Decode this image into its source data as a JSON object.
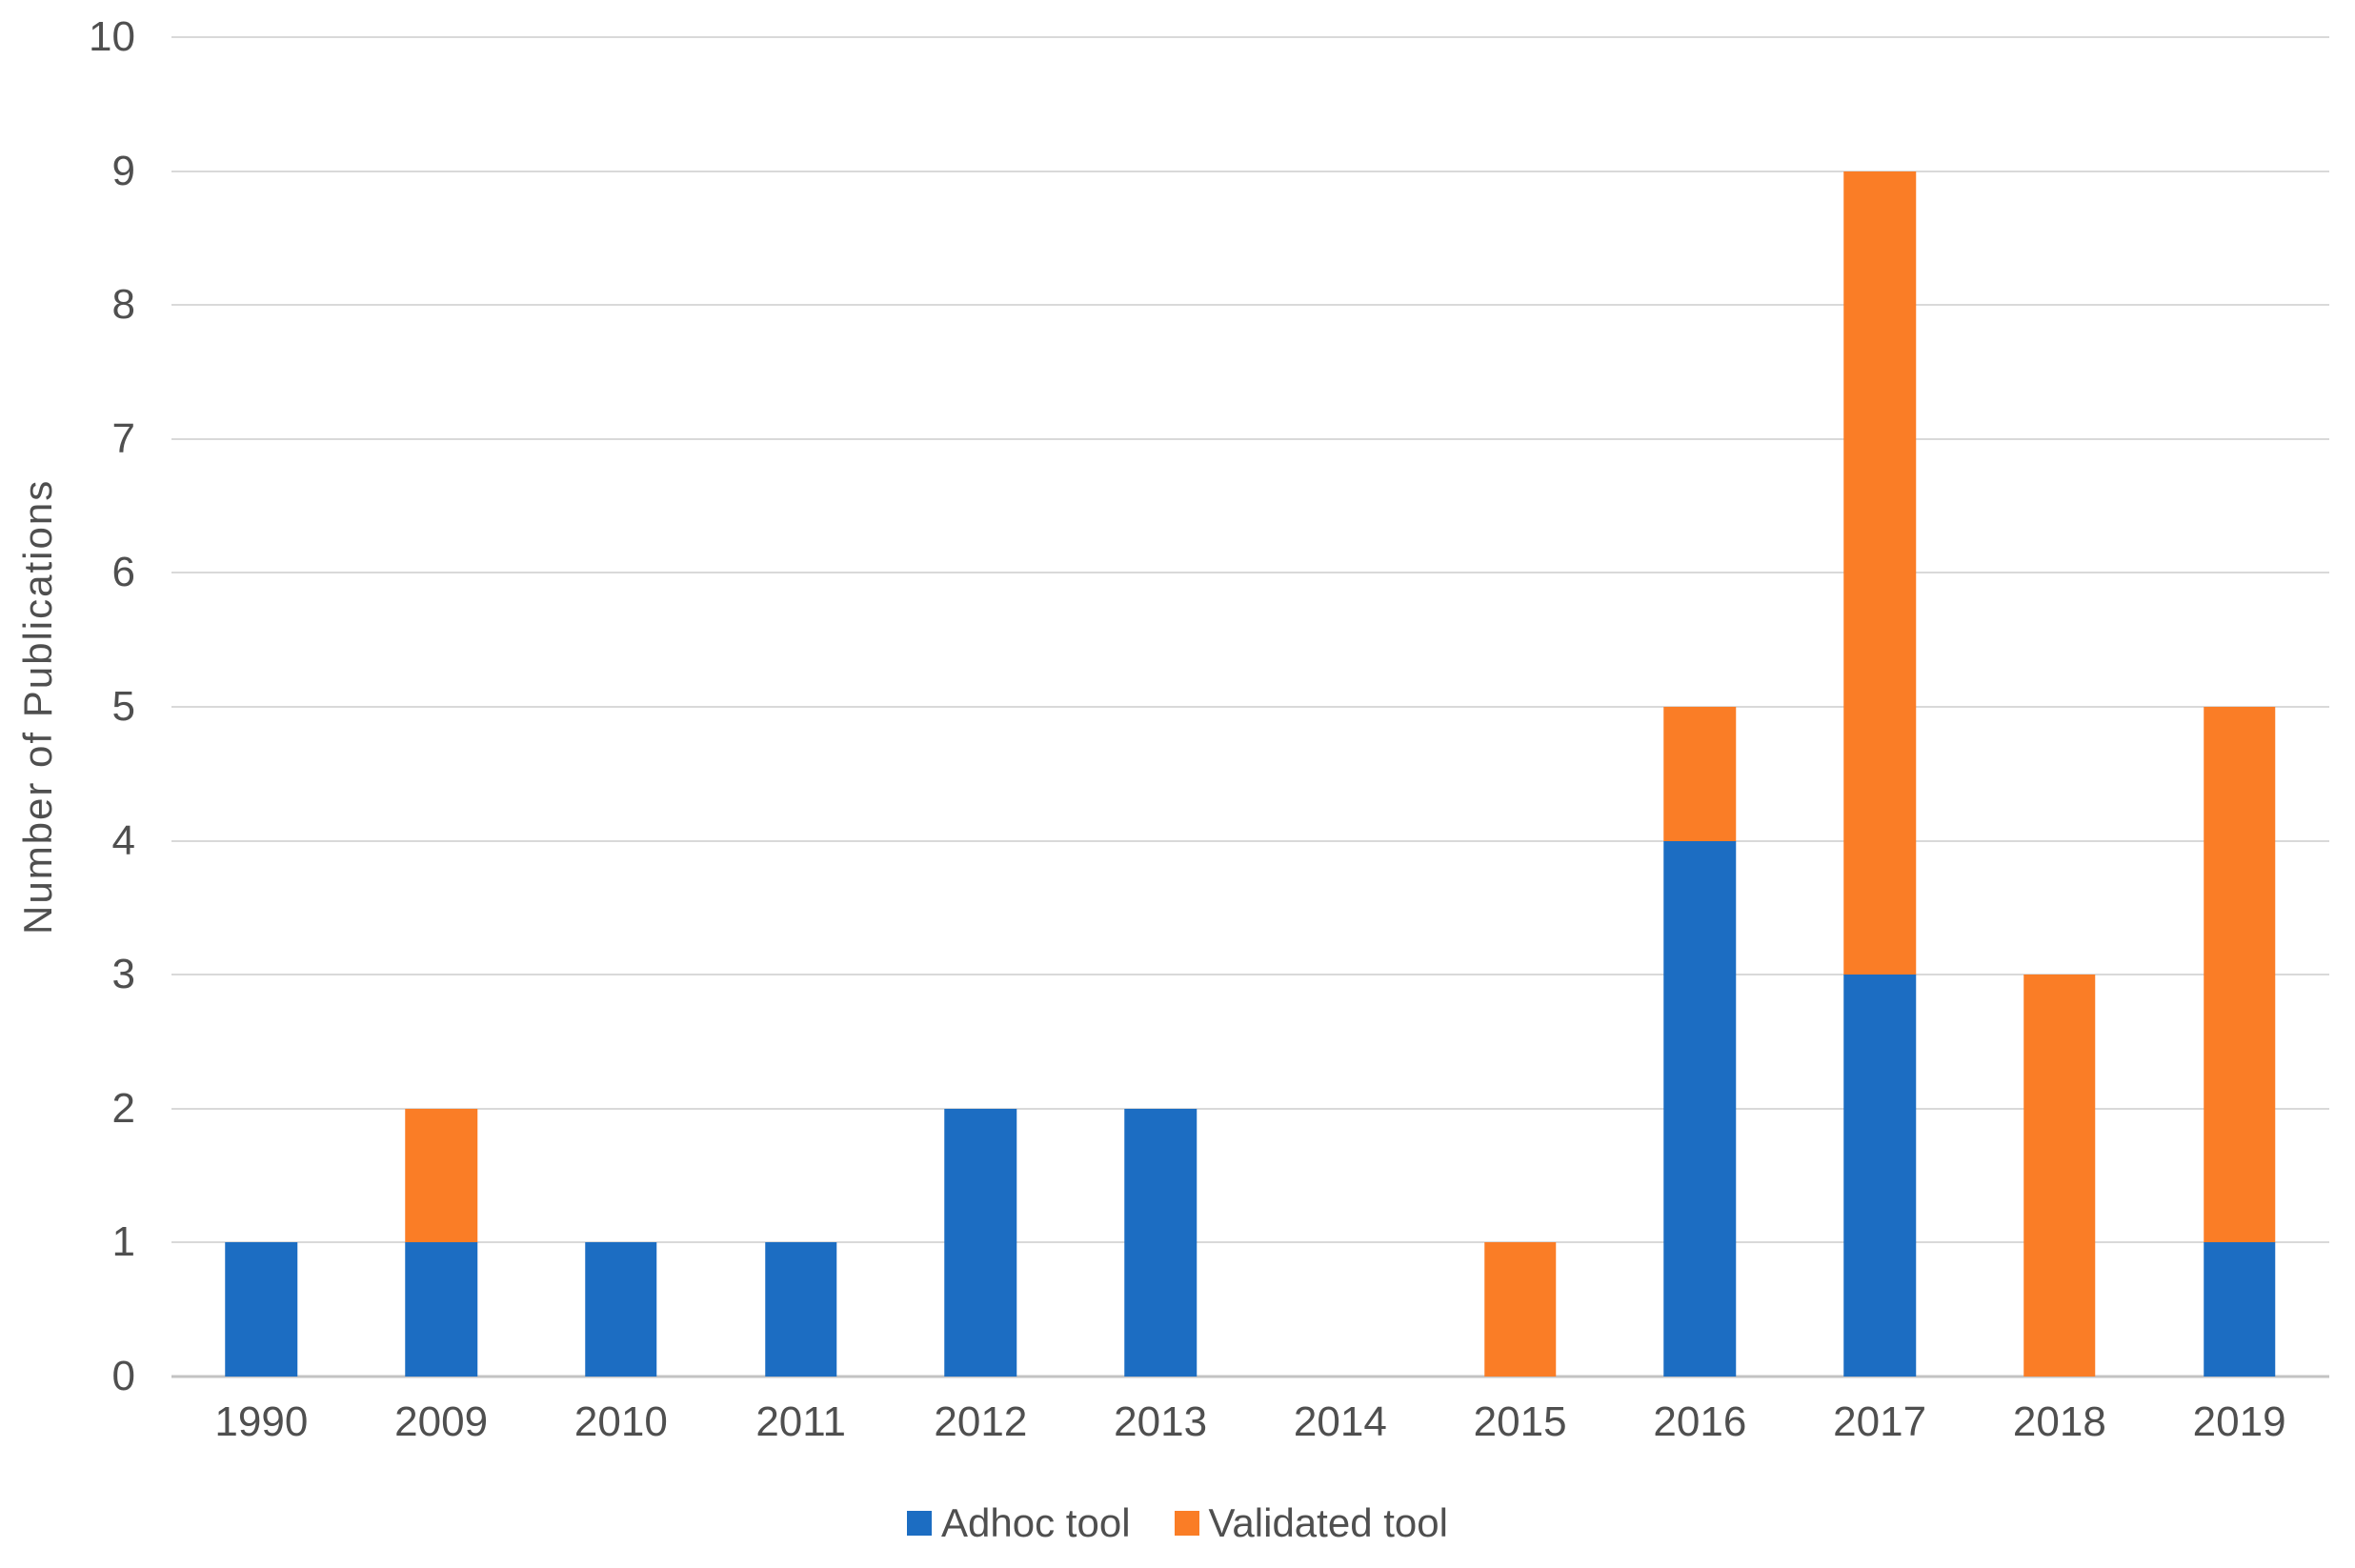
{
  "chart_data": {
    "type": "bar",
    "stacked": true,
    "title": "",
    "xlabel": "",
    "ylabel": "Number of Publications",
    "categories": [
      "1990",
      "2009",
      "2010",
      "2011",
      "2012",
      "2013",
      "2014",
      "2015",
      "2016",
      "2017",
      "2018",
      "2019"
    ],
    "series": [
      {
        "name": "Adhoc tool",
        "color": "#1c6dc2",
        "values": [
          1,
          1,
          1,
          1,
          2,
          2,
          0,
          0,
          4,
          3,
          0,
          1
        ]
      },
      {
        "name": "Validated tool",
        "color": "#fa7d26",
        "values": [
          0,
          1,
          0,
          0,
          0,
          0,
          0,
          1,
          1,
          6,
          3,
          4
        ]
      }
    ],
    "totals": [
      1,
      2,
      1,
      1,
      2,
      2,
      0,
      1,
      5,
      9,
      3,
      5
    ],
    "ylim": [
      0,
      10
    ],
    "ytick_step": 1,
    "yticks": [
      0,
      1,
      2,
      3,
      4,
      5,
      6,
      7,
      8,
      9,
      10
    ],
    "grid": true,
    "legend_position": "bottom"
  },
  "colors": {
    "background": "#ffffff",
    "axis_text": "#4f4f4f",
    "gridline": "#d9d9d9",
    "axis_line": "#c3c3c3"
  }
}
